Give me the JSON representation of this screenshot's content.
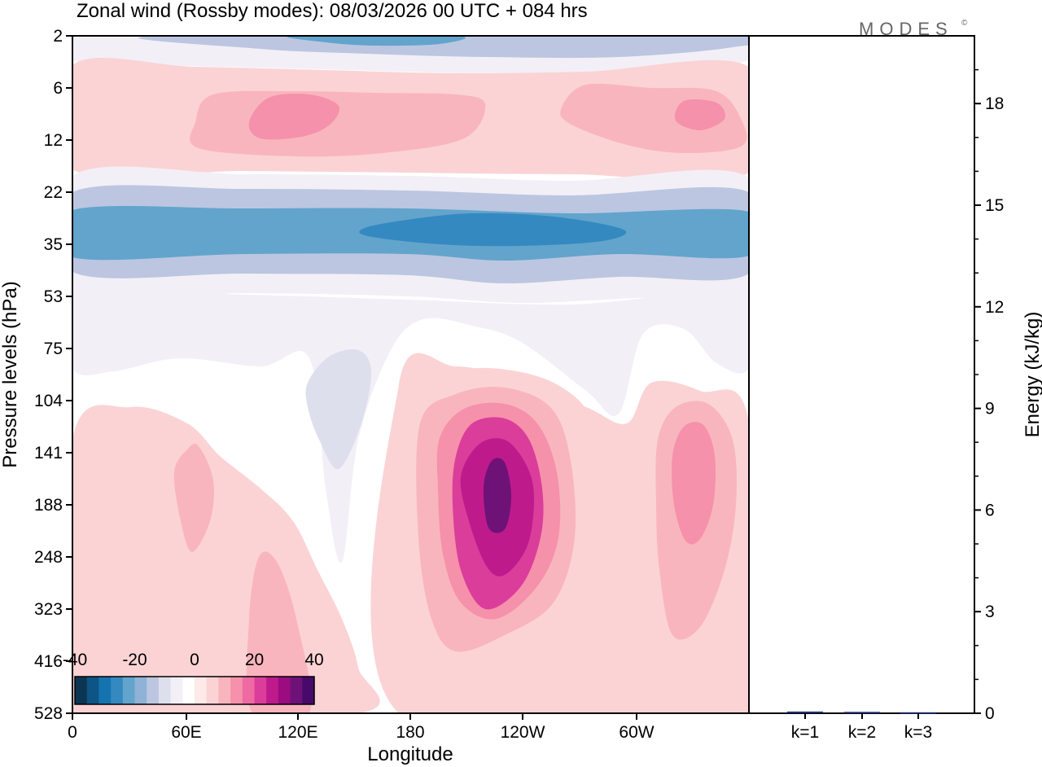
{
  "chart_data": [
    {
      "type": "heatmap",
      "title": "Zonal wind (Rossby modes):  08/03/2026  00 UTC  + 084 hrs",
      "xlabel": "Longitude",
      "ylabel": "Pressure levels (hPa)",
      "x_ticks": [
        "0",
        "60E",
        "120E",
        "180",
        "120W",
        "60W"
      ],
      "y_ticks": [
        "2",
        "6",
        "12",
        "22",
        "35",
        "53",
        "75",
        "104",
        "141",
        "188",
        "248",
        "323",
        "416",
        "528"
      ],
      "colorbar": {
        "ticks": [
          "-40",
          "-20",
          "0",
          "20",
          "40"
        ],
        "range": [
          -40,
          40
        ],
        "colors": [
          "#0c3553",
          "#0c5585",
          "#1573b0",
          "#3489c0",
          "#62a4cc",
          "#8fb2d6",
          "#bcc6e0",
          "#dedfed",
          "#f2eff7",
          "#ffffff",
          "#fde9e7",
          "#fbd3d5",
          "#f9b5bd",
          "#f591aa",
          "#ef6aa3",
          "#db3d9b",
          "#bf1a8c",
          "#9a0c7f",
          "#6e1278",
          "#47096a"
        ]
      },
      "regions": [
        {
          "name": "west-background",
          "value": -4
        },
        {
          "name": "top-band",
          "value": -8
        },
        {
          "name": "top-band-core",
          "value": -16
        },
        {
          "name": "top-band-max",
          "value": -24
        },
        {
          "name": "upper-positive-band",
          "value": 4
        },
        {
          "name": "upper-positive-patch-west",
          "value": 8
        },
        {
          "name": "upper-positive-core-west",
          "value": 12
        },
        {
          "name": "upper-positive-patch-east",
          "value": 8
        },
        {
          "name": "upper-positive-core-east",
          "value": 12
        },
        {
          "name": "jet-outer",
          "value": -8
        },
        {
          "name": "jet-middle",
          "value": -16
        },
        {
          "name": "jet-core",
          "value": -22
        },
        {
          "name": "jet-max",
          "value": -28
        },
        {
          "name": "lower-stratosphere-band",
          "value": -8
        },
        {
          "name": "negative-tongue-midlevel",
          "value": -10
        },
        {
          "name": "surface-positive-west",
          "value": 4
        },
        {
          "name": "surface-positive-east",
          "value": 4
        },
        {
          "name": "pacific-positive-outer",
          "value": 4
        },
        {
          "name": "pacific-positive-2",
          "value": 8
        },
        {
          "name": "pacific-positive-3",
          "value": 14
        },
        {
          "name": "pacific-positive-4",
          "value": 20
        },
        {
          "name": "pacific-positive-5",
          "value": 26
        },
        {
          "name": "pacific-positive-max",
          "value": 32
        },
        {
          "name": "atlantic-positive-outer",
          "value": 8
        },
        {
          "name": "atlantic-positive-core",
          "value": 12
        },
        {
          "name": "indian-positive-lobe",
          "value": 8
        },
        {
          "name": "africa-surface-lobe",
          "value": 8
        }
      ]
    },
    {
      "type": "bar",
      "ylabel": "Energy (kJ/kg)",
      "categories": [
        "k=1",
        "k=2",
        "k=3"
      ],
      "values": [
        0.05,
        0.04,
        0.03
      ],
      "y_ticks": [
        "0",
        "3",
        "6",
        "9",
        "12",
        "15",
        "18"
      ],
      "ylim": [
        0,
        20
      ]
    }
  ],
  "branding": {
    "logo_text": "MODES",
    "logo_mark": "©"
  }
}
